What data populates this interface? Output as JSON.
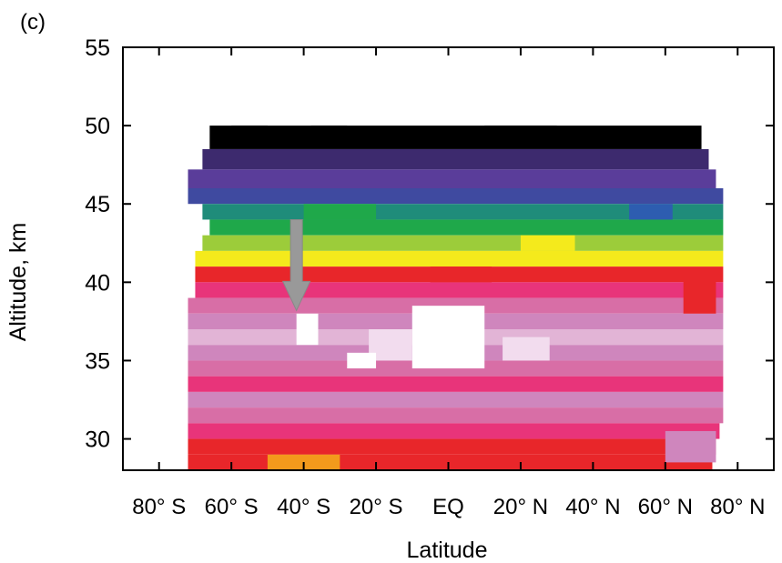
{
  "chart_data": {
    "type": "heatmap",
    "panel_label": "(c)",
    "xlabel": "Latitude",
    "ylabel": "Altitude, km",
    "xlim": [
      -90,
      90
    ],
    "ylim": [
      28,
      55
    ],
    "x_ticks": [
      -80,
      -60,
      -40,
      -20,
      0,
      20,
      40,
      60,
      80
    ],
    "x_tick_labels": [
      "80° S",
      "60° S",
      "40° S",
      "20° S",
      "EQ",
      "20° N",
      "40° N",
      "60° N",
      "80° N"
    ],
    "y_ticks": [
      30,
      35,
      40,
      45,
      50,
      55
    ],
    "y_tick_labels": [
      "30",
      "35",
      "40",
      "45",
      "50",
      "55"
    ],
    "grid": false,
    "colors": {
      "black": "#000000",
      "dark_purple": "#3d2a6e",
      "violet": "#5a3d9a",
      "indigo": "#3f4aa0",
      "blue": "#2d5db0",
      "teal": "#1f8c7a",
      "green": "#1fa84a",
      "light_green": "#9ccc3a",
      "yellow": "#f4ea1c",
      "orange": "#f39a1c",
      "red": "#e8262a",
      "magenta": "#e8347a",
      "rose": "#d86ea6",
      "pink": "#cf86bd",
      "light_pink": "#e2b4d6",
      "pale_pink": "#f2dcee",
      "white": "#ffffff"
    },
    "bands": [
      {
        "y0": 48.5,
        "y1": 50.0,
        "color": "black",
        "x0": -66,
        "x1": 70
      },
      {
        "y0": 47.2,
        "y1": 48.5,
        "color": "dark_purple",
        "x0": -68,
        "x1": 72
      },
      {
        "y0": 46.0,
        "y1": 47.2,
        "color": "violet",
        "x0": -72,
        "x1": 74
      },
      {
        "y0": 45.0,
        "y1": 46.0,
        "color": "indigo",
        "x0": -72,
        "x1": 76
      },
      {
        "y0": 44.0,
        "y1": 45.0,
        "color": "teal",
        "x0": -68,
        "x1": 76
      },
      {
        "y0": 43.0,
        "y1": 44.0,
        "color": "green",
        "x0": -66,
        "x1": 76
      },
      {
        "y0": 42.0,
        "y1": 43.0,
        "color": "light_green",
        "x0": -68,
        "x1": 76
      },
      {
        "y0": 41.0,
        "y1": 42.0,
        "color": "yellow",
        "x0": -70,
        "x1": 76
      },
      {
        "y0": 40.0,
        "y1": 41.0,
        "color": "red",
        "x0": -70,
        "x1": 76
      },
      {
        "y0": 39.0,
        "y1": 40.0,
        "color": "magenta",
        "x0": -70,
        "x1": 76
      },
      {
        "y0": 38.0,
        "y1": 39.0,
        "color": "rose",
        "x0": -72,
        "x1": 76
      },
      {
        "y0": 37.0,
        "y1": 38.0,
        "color": "pink",
        "x0": -72,
        "x1": 76
      },
      {
        "y0": 36.0,
        "y1": 37.0,
        "color": "light_pink",
        "x0": -72,
        "x1": 76
      },
      {
        "y0": 35.0,
        "y1": 36.0,
        "color": "pink",
        "x0": -72,
        "x1": 76
      },
      {
        "y0": 34.0,
        "y1": 35.0,
        "color": "rose",
        "x0": -72,
        "x1": 76
      },
      {
        "y0": 33.0,
        "y1": 34.0,
        "color": "magenta",
        "x0": -72,
        "x1": 76
      },
      {
        "y0": 32.0,
        "y1": 33.0,
        "color": "pink",
        "x0": -72,
        "x1": 76
      },
      {
        "y0": 31.0,
        "y1": 32.0,
        "color": "rose",
        "x0": -72,
        "x1": 76
      },
      {
        "y0": 30.0,
        "y1": 31.0,
        "color": "magenta",
        "x0": -72,
        "x1": 75
      },
      {
        "y0": 29.0,
        "y1": 30.0,
        "color": "red",
        "x0": -72,
        "x1": 74
      },
      {
        "y0": 28.0,
        "y1": 29.0,
        "color": "red",
        "x0": -72,
        "x1": 73
      }
    ],
    "patches": [
      {
        "x0": -10,
        "x1": 10,
        "y0": 34.5,
        "y1": 38.5,
        "color": "white"
      },
      {
        "x0": -22,
        "x1": -10,
        "y0": 35.0,
        "y1": 37.0,
        "color": "pale_pink"
      },
      {
        "x0": -42,
        "x1": -36,
        "y0": 36.0,
        "y1": 38.0,
        "color": "white"
      },
      {
        "x0": 15,
        "x1": 28,
        "y0": 35.0,
        "y1": 36.5,
        "color": "pale_pink"
      },
      {
        "x0": -28,
        "x1": -20,
        "y0": 34.5,
        "y1": 35.5,
        "color": "white"
      },
      {
        "x0": -5,
        "x1": 12,
        "y0": 40.0,
        "y1": 41.0,
        "color": "red"
      },
      {
        "x0": 20,
        "x1": 35,
        "y0": 42.0,
        "y1": 43.0,
        "color": "yellow"
      },
      {
        "x0": 50,
        "x1": 62,
        "y0": 44.0,
        "y1": 45.0,
        "color": "blue"
      },
      {
        "x0": -40,
        "x1": -20,
        "y0": 44.0,
        "y1": 45.0,
        "color": "green"
      },
      {
        "x0": 65,
        "x1": 74,
        "y0": 38.0,
        "y1": 40.5,
        "color": "red"
      },
      {
        "x0": -50,
        "x1": -30,
        "y0": 28.0,
        "y1": 29.0,
        "color": "orange"
      },
      {
        "x0": 60,
        "x1": 74,
        "y0": 28.5,
        "y1": 30.5,
        "color": "pink"
      },
      {
        "x0": -60,
        "x1": -50,
        "y0": 49.5,
        "y1": 50.0,
        "color": "black"
      },
      {
        "x0": 10,
        "x1": 30,
        "y0": 49.2,
        "y1": 50.0,
        "color": "black"
      },
      {
        "x0": -38,
        "x1": -28,
        "y0": 49.3,
        "y1": 50.0,
        "color": "black"
      }
    ],
    "annotation": {
      "type": "arrow",
      "color": "#999999",
      "x": -42,
      "y_start": 44,
      "y_end": 38.2
    }
  }
}
